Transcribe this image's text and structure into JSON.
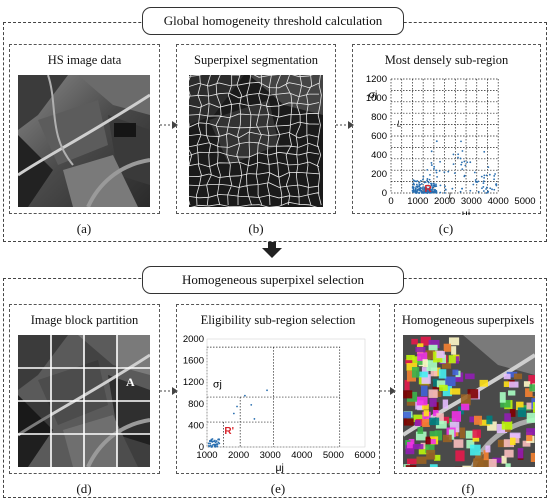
{
  "top": {
    "title": "Global homogeneity threshold calculation",
    "panels": [
      {
        "title": "HS image data",
        "caption": "(a)"
      },
      {
        "title": "Superpixel segmentation",
        "caption": "(b)"
      },
      {
        "title": "Most densely sub-region",
        "caption": "(c)"
      }
    ]
  },
  "bottom": {
    "title": "Homogeneous superpixel selection",
    "panels": [
      {
        "title": "Image block partition",
        "caption": "(d)"
      },
      {
        "title": "Eligibility sub-region selection",
        "caption": "(e)"
      },
      {
        "title": "Homogeneous superpixels",
        "caption": "(f)"
      }
    ]
  },
  "labels": {
    "block_label": "A",
    "region_label_c": "R",
    "region_label_e": "R'",
    "l_label": "L"
  },
  "chart_data": [
    {
      "type": "scatter",
      "xlabel": "μj",
      "ylabel": "σj",
      "x_ticks": [
        0,
        1000,
        2000,
        3000,
        4000,
        5000
      ],
      "y_ticks": [
        0,
        200,
        400,
        600,
        800,
        1000,
        1200
      ],
      "xlim": [
        0,
        5000
      ],
      "ylim": [
        0,
        1200
      ],
      "grid": "dashed"
    },
    {
      "type": "scatter",
      "xlabel": "μj",
      "ylabel": "σj",
      "x_ticks": [
        1000,
        2000,
        3000,
        4000,
        5000,
        6000
      ],
      "y_ticks": [
        0,
        400,
        800,
        1200,
        1600,
        2000
      ],
      "xlim": [
        1000,
        6000
      ],
      "ylim": [
        0,
        2000
      ],
      "grid": "dashed"
    }
  ],
  "colors": {
    "points": "#2a6fb0",
    "region_label": "#d8232a",
    "frame": "#444444"
  }
}
